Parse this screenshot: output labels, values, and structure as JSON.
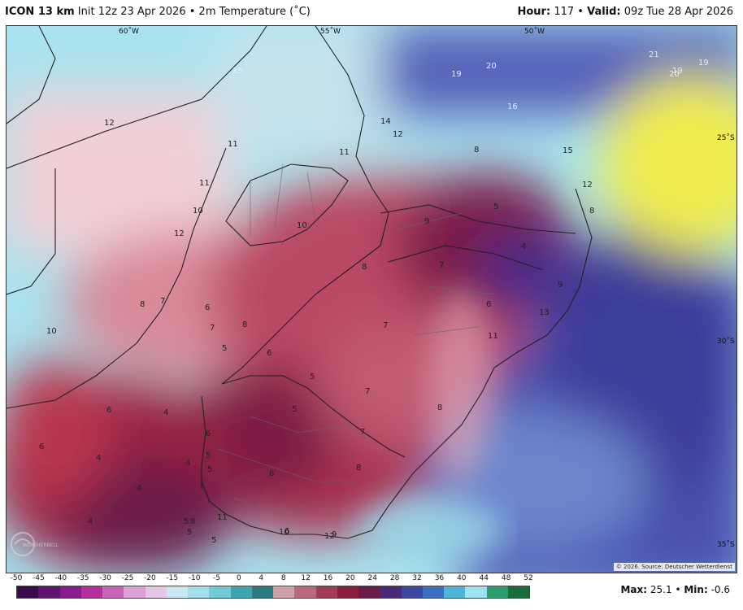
{
  "header": {
    "model": "ICON 13 km",
    "init": "Init 12z 23 Apr 2026",
    "sep": "•",
    "variable": "2m Temperature (˚C)",
    "hour_label": "Hour:",
    "hour_value": "117",
    "valid_label": "Valid:",
    "valid_value": "09z Tue 28 Apr 2026"
  },
  "map": {
    "lon_labels": [
      "60˚W",
      "55˚W",
      "50˚W"
    ],
    "lat_labels": [
      "25˚S",
      "30˚S",
      "35˚S"
    ],
    "values": [
      "15",
      "19",
      "20",
      "21",
      "20",
      "19",
      "19",
      "16",
      "14",
      "12",
      "12",
      "11",
      "11",
      "11",
      "10",
      "10",
      "12",
      "8",
      "15",
      "12",
      "8",
      "5",
      "9",
      "4",
      "8",
      "7",
      "9",
      "6",
      "13",
      "8",
      "7",
      "11",
      "6",
      "7",
      "10",
      "8",
      "7",
      "6",
      "5",
      "7",
      "5",
      "8",
      "6",
      "5",
      "6",
      "4",
      "7",
      "4",
      "5",
      "5",
      "6",
      "8",
      "4",
      "5",
      "6",
      "4",
      "4",
      "5",
      "8",
      "11",
      "5",
      "6",
      "9",
      "10",
      "12"
    ],
    "credit": "© 2026. Source: Deutscher Wetterdienst",
    "logo_text": "WEATHERBELL"
  },
  "colorbar": {
    "ticks": [
      "-50",
      "-45",
      "-40",
      "-35",
      "-30",
      "-25",
      "-20",
      "-15",
      "-10",
      "-5",
      "0",
      "4",
      "8",
      "12",
      "16",
      "20",
      "24",
      "28",
      "32",
      "36",
      "40",
      "44",
      "48",
      "52"
    ],
    "colors": [
      "#3a0a4e",
      "#5e1470",
      "#8a1a8e",
      "#b0309e",
      "#c865b8",
      "#dca0d4",
      "#e6c6e6",
      "#c9e7f0",
      "#a2dde8",
      "#6fcad6",
      "#3fa4b0",
      "#2b7a80",
      "#cfa0a8",
      "#b86a7a",
      "#a03c55",
      "#8a1e3c",
      "#6c1a48",
      "#4a2a78",
      "#3c48a0",
      "#3e6fc0",
      "#4fb4d6",
      "#9ee1f0",
      "#2c9c6a",
      "#1a6c3a"
    ]
  },
  "stats": {
    "max_label": "Max:",
    "max_value": "25.1",
    "min_label": "Min:",
    "min_value": "-0.6",
    "sep": "•"
  }
}
